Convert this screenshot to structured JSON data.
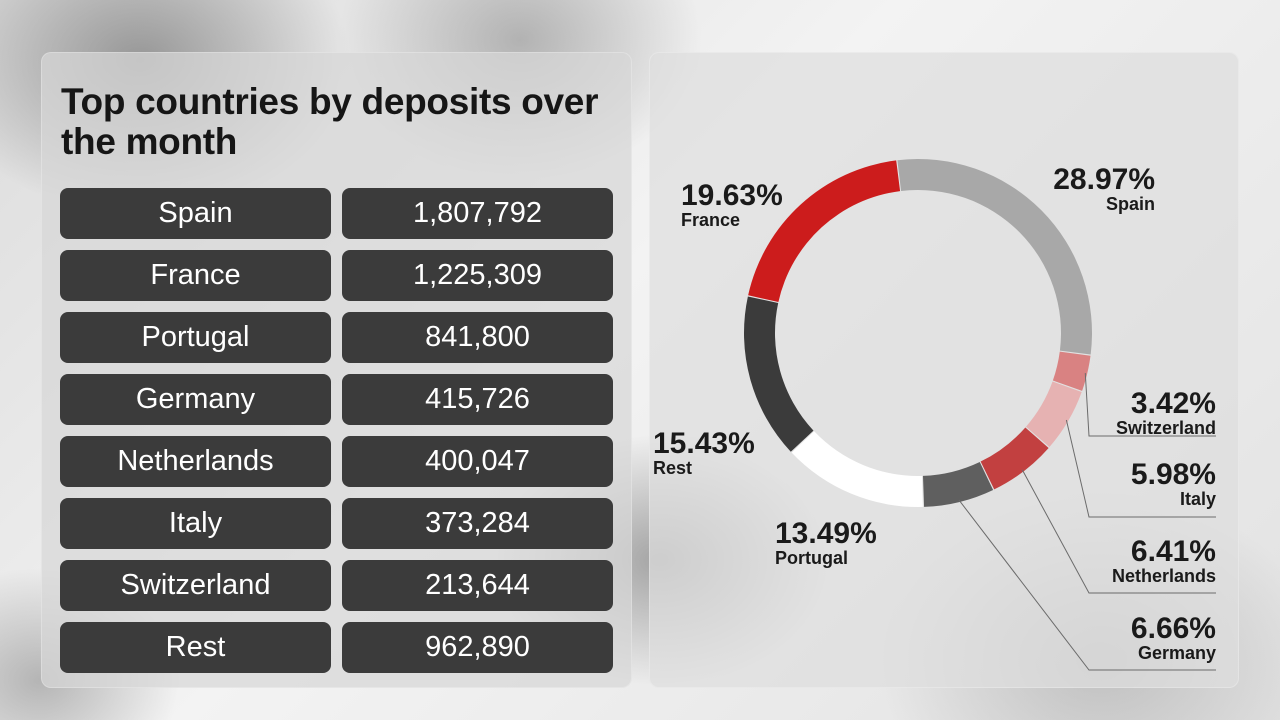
{
  "title": "Top countries by deposits over the month",
  "table": {
    "rows": [
      {
        "country": "Spain",
        "deposits": "1,807,792"
      },
      {
        "country": "France",
        "deposits": "1,225,309"
      },
      {
        "country": "Portugal",
        "deposits": "841,800"
      },
      {
        "country": "Germany",
        "deposits": "415,726"
      },
      {
        "country": "Netherlands",
        "deposits": "400,047"
      },
      {
        "country": "Italy",
        "deposits": "373,284"
      },
      {
        "country": "Switzerland",
        "deposits": "213,644"
      },
      {
        "country": "Rest",
        "deposits": "962,890"
      }
    ]
  },
  "chart_data": {
    "type": "pie",
    "title": "",
    "slices": [
      {
        "name": "Spain",
        "value": 28.97,
        "label": "28.97%",
        "color": "#a8a8a8"
      },
      {
        "name": "Switzerland",
        "value": 3.42,
        "label": "3.42%",
        "color": "#d98282"
      },
      {
        "name": "Italy",
        "value": 5.98,
        "label": "5.98%",
        "color": "#e6b2b2"
      },
      {
        "name": "Netherlands",
        "value": 6.41,
        "label": "6.41%",
        "color": "#c24040"
      },
      {
        "name": "Germany",
        "value": 6.66,
        "label": "6.66%",
        "color": "#5f5f5f"
      },
      {
        "name": "Portugal",
        "value": 13.49,
        "label": "13.49%",
        "color": "#ffffff"
      },
      {
        "name": "Rest",
        "value": 15.43,
        "label": "15.43%",
        "color": "#3b3b3b"
      },
      {
        "name": "France",
        "value": 19.63,
        "label": "19.63%",
        "color": "#cc1c1c"
      }
    ]
  }
}
